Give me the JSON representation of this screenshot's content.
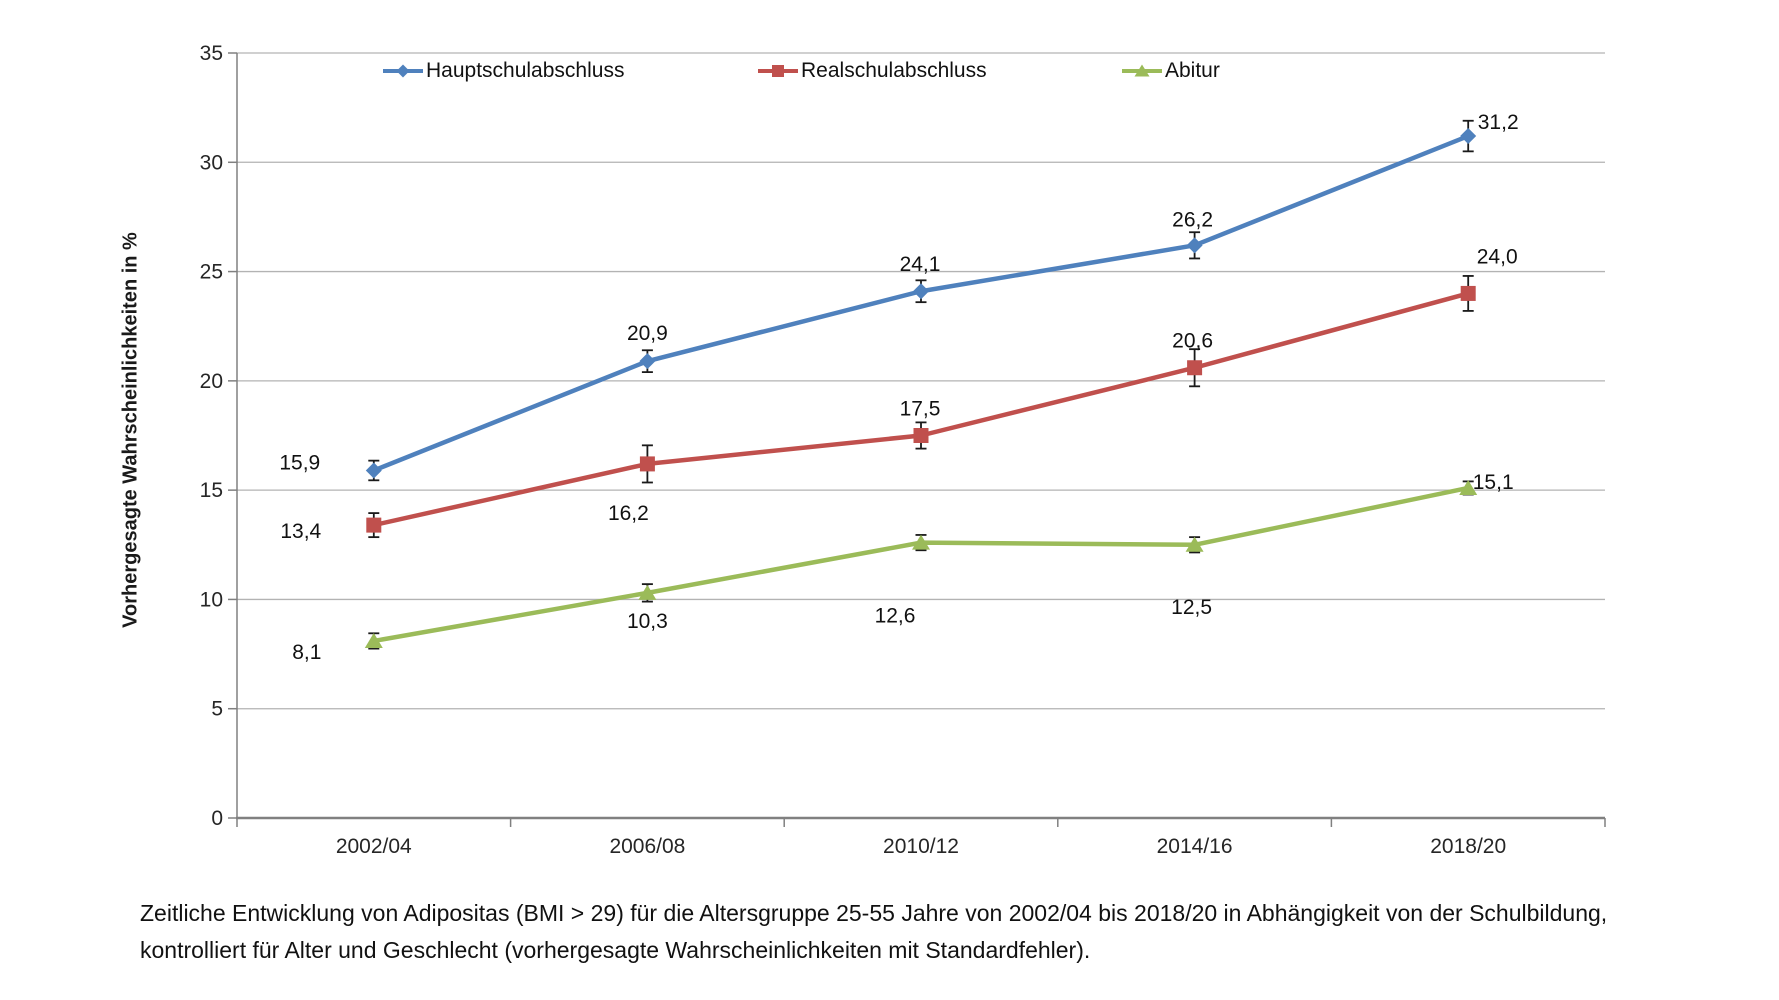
{
  "figure": {
    "caption_line1": "Zeitliche Entwicklung von Adipositas (BMI > 29) für die Altersgruppe 25-55 Jahre von 2002/04 bis 2018/20 in Abhängigkeit von der Schulbildung,",
    "caption_line2": "kontrolliert für Alter und Geschlecht (vorhergesagte Wahrscheinlichkeiten mit Standardfehler)."
  },
  "chart_data": {
    "type": "line",
    "title": "",
    "xlabel": "",
    "ylabel": "Vorhergesagte Wahrscheinlichkeiten in %",
    "categories": [
      "2002/04",
      "2006/08",
      "2010/12",
      "2014/16",
      "2018/20"
    ],
    "ylim": [
      0,
      35
    ],
    "yticks": [
      0,
      5,
      10,
      15,
      20,
      25,
      30,
      35
    ],
    "grid": "horizontal",
    "legend_position": "top",
    "error_bars": true,
    "grid_color": "#b3b3b3",
    "axis_color": "#808080",
    "series": [
      {
        "name": "Hauptschulabschluss",
        "color": "#4f81bd",
        "marker": "diamond",
        "values": [
          15.9,
          20.9,
          24.1,
          26.2,
          31.2
        ],
        "labels": [
          "15,9",
          "20,9",
          "24,1",
          "26,2",
          "31,2"
        ],
        "stderr": [
          0.45,
          0.5,
          0.5,
          0.6,
          0.7
        ]
      },
      {
        "name": "Realschulabschluss",
        "color": "#c0504d",
        "marker": "square",
        "values": [
          13.4,
          16.2,
          17.5,
          20.6,
          24.0
        ],
        "labels": [
          "13,4",
          "16,2",
          "17,5",
          "20,6",
          "24,0"
        ],
        "stderr": [
          0.55,
          0.85,
          0.6,
          0.85,
          0.8
        ]
      },
      {
        "name": "Abitur",
        "color": "#9bbb59",
        "marker": "triangle",
        "values": [
          8.1,
          10.3,
          12.6,
          12.5,
          15.1
        ],
        "labels": [
          "8,1",
          "10,3",
          "12,6",
          "12,5",
          "15,1"
        ],
        "stderr": [
          0.35,
          0.4,
          0.35,
          0.35,
          0.3
        ]
      }
    ]
  }
}
